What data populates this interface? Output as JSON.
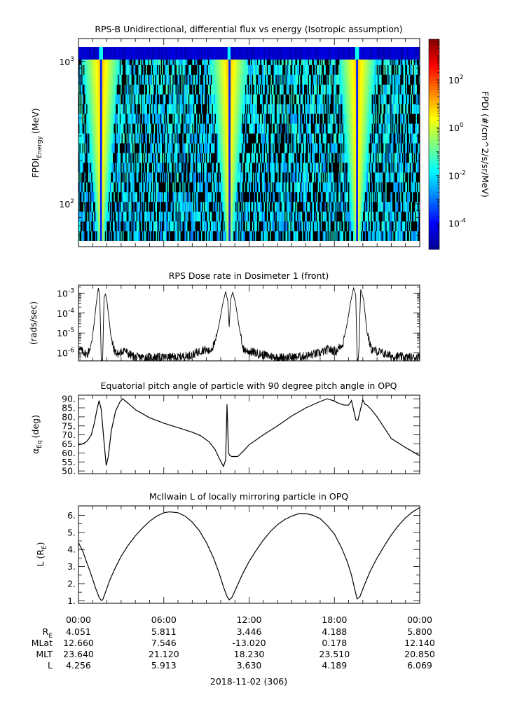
{
  "chart_data": [
    {
      "type": "heatmap",
      "title": "RPS-B  Unidirectional, differential flux vs energy (Isotropic assumption)",
      "ylabel_main": "FPDI",
      "ylabel_sub": "Energy",
      "ylabel_unit": "(MeV)",
      "yscale": "log",
      "ylim": [
        50,
        1450
      ],
      "y_ticks": [
        {
          "value": 100,
          "base": "10",
          "exp": "2"
        },
        {
          "value": 1000,
          "base": "10",
          "exp": "3"
        }
      ],
      "xlim": [
        0,
        24
      ],
      "colorbar": {
        "label": "FPDI (#/cm^2/s/sr/MeV)",
        "scale": "log",
        "range": [
          8e-06,
          5000
        ],
        "ticks": [
          {
            "value": 0.0001,
            "base": "10",
            "exp": "-4"
          },
          {
            "value": 0.01,
            "base": "10",
            "exp": "-2"
          },
          {
            "value": 1,
            "base": "10",
            "exp": "0"
          },
          {
            "value": 100,
            "base": "10",
            "exp": "2"
          }
        ],
        "colors": [
          "#00008f",
          "#0000ff",
          "#0080ff",
          "#00ffff",
          "#80ff80",
          "#ffff00",
          "#ff8000",
          "#ff0000",
          "#800000"
        ]
      },
      "perigee_hours": [
        1.6,
        10.6,
        19.6
      ],
      "background_level": 0.004,
      "top_channel_level": 3e-05,
      "energy_channels": 20
    },
    {
      "type": "line",
      "title": "RPS  Dose rate in Dosimeter 1 (front)",
      "ylabel": "(rads/sec)",
      "yscale": "log",
      "ylim": [
        4e-07,
        0.0025
      ],
      "xlim": [
        0,
        24
      ],
      "y_ticks": [
        {
          "value": 1e-06,
          "base": "10",
          "exp": "-6"
        },
        {
          "value": 1e-05,
          "base": "10",
          "exp": "-5"
        },
        {
          "value": 0.0001,
          "base": "10",
          "exp": "-4"
        },
        {
          "value": 0.001,
          "base": "10",
          "exp": "-3"
        }
      ],
      "series": [
        {
          "x": [
            0,
            0.3,
            0.6,
            0.9,
            1.1,
            1.25,
            1.4,
            1.5,
            1.6,
            1.7,
            1.8,
            1.9,
            2.0,
            2.15,
            2.3,
            2.5,
            2.7,
            2.9,
            3.2,
            3.5,
            4,
            5,
            6,
            7,
            8,
            8.8,
            9.2,
            9.6,
            9.9,
            10.15,
            10.35,
            10.5,
            10.6,
            10.7,
            10.85,
            11.05,
            11.3,
            11.6,
            12,
            13,
            14,
            15,
            16,
            17,
            17.6,
            18.1,
            18.6,
            18.9,
            19.15,
            19.35,
            19.5,
            19.6,
            19.7,
            19.85,
            20.05,
            20.3,
            20.6,
            21,
            22,
            23,
            24
          ],
          "y": [
            1.5e-06,
            1.2e-06,
            8e-07,
            2.5e-06,
            3e-05,
            0.0003,
            0.0018,
            0.0007,
            5e-07,
            5e-07,
            0.0006,
            0.0009,
            0.0004,
            5e-05,
            5e-06,
            1.5e-06,
            9e-07,
            9e-07,
            1.5e-06,
            9e-07,
            6e-07,
            6e-07,
            6e-07,
            6e-07,
            8e-07,
            1.5e-06,
            1.2e-06,
            3e-06,
            3e-05,
            0.0003,
            0.0012,
            0.0004,
            2e-05,
            0.0005,
            0.0011,
            0.0003,
            2e-05,
            1.5e-06,
            1.2e-06,
            8e-07,
            6e-07,
            6e-07,
            7e-07,
            1e-06,
            1.5e-06,
            1.2e-06,
            3e-06,
            3e-05,
            0.0004,
            0.0018,
            0.0008,
            5e-07,
            6e-07,
            0.0015,
            0.0005,
            1e-05,
            1.5e-06,
            1.2e-06,
            7e-07,
            6e-07,
            6e-07
          ]
        }
      ]
    },
    {
      "type": "line",
      "title": "Equatorial pitch angle of particle with 90 degree pitch angle in OPQ",
      "ylabel_main": "α",
      "ylabel_sub": "Eq",
      "ylabel_unit": "(deg)",
      "ylim": [
        48.5,
        92
      ],
      "xlim": [
        0,
        24
      ],
      "y_ticks": [
        50,
        55,
        60,
        65,
        70,
        75,
        80,
        85,
        90
      ],
      "y_tick_labels": [
        "50.",
        "55.",
        "60.",
        "65.",
        "70.",
        "75.",
        "80.",
        "85.",
        "90."
      ],
      "series": [
        {
          "x": [
            0,
            0.3,
            0.6,
            0.9,
            1.1,
            1.3,
            1.45,
            1.6,
            1.8,
            1.95,
            2.1,
            2.3,
            2.6,
            2.9,
            3.1,
            3.5,
            4,
            5,
            6,
            7,
            8,
            8.6,
            9.2,
            9.6,
            9.9,
            10.1,
            10.2,
            10.35,
            10.45,
            10.55,
            10.65,
            10.8,
            11.2,
            11.6,
            12,
            13,
            14,
            15,
            16,
            17,
            17.5,
            17.9,
            18.3,
            18.7,
            19.0,
            19.2,
            19.35,
            19.5,
            19.65,
            19.8,
            20.0,
            20.15,
            20.3,
            20.6,
            21,
            21.5,
            22,
            23,
            24
          ],
          "y": [
            64.5,
            65,
            66.5,
            70,
            76,
            84,
            89,
            84,
            66,
            53,
            58,
            72,
            83,
            88,
            90,
            87.5,
            84,
            79.5,
            76.5,
            74,
            71.5,
            69.5,
            66,
            62,
            57,
            54,
            52.5,
            56,
            87,
            60,
            58.5,
            58,
            58,
            61,
            64.5,
            70,
            75,
            80.5,
            85,
            88.5,
            90,
            89,
            87.5,
            86.5,
            86.5,
            89,
            84,
            78.5,
            78,
            83,
            89.5,
            87,
            86.5,
            84,
            80,
            74,
            68,
            63,
            58.5
          ]
        }
      ]
    },
    {
      "type": "line",
      "title": "McIlwain L of locally mirroring particle in OPQ",
      "ylabel_main": "L (R",
      "ylabel_sub": "E",
      "ylabel_unit": ")",
      "ylim": [
        0.85,
        6.55
      ],
      "xlim": [
        0,
        24
      ],
      "y_ticks": [
        1,
        2,
        3,
        4,
        5,
        6
      ],
      "y_tick_labels": [
        "1.",
        "2.",
        "3.",
        "4.",
        "5.",
        "6."
      ],
      "series": [
        {
          "x": [
            0,
            0.3,
            0.6,
            0.9,
            1.2,
            1.45,
            1.6,
            1.7,
            1.9,
            2.2,
            2.6,
            3.0,
            3.5,
            4,
            4.5,
            5,
            5.5,
            6,
            6.4,
            7,
            7.5,
            8,
            8.5,
            9,
            9.5,
            9.9,
            10.2,
            10.45,
            10.6,
            10.8,
            11.1,
            11.5,
            12,
            12.5,
            13,
            13.5,
            14,
            14.5,
            15,
            15.5,
            16,
            16.5,
            17,
            17.5,
            18,
            18.5,
            18.9,
            19.2,
            19.45,
            19.6,
            19.8,
            20.1,
            20.5,
            21,
            21.5,
            22,
            22.5,
            23,
            23.5,
            24
          ],
          "y": [
            4.4,
            3.9,
            3.2,
            2.5,
            1.75,
            1.2,
            1.02,
            1.05,
            1.5,
            2.2,
            2.95,
            3.6,
            4.25,
            4.8,
            5.25,
            5.65,
            5.95,
            6.15,
            6.2,
            6.15,
            5.95,
            5.6,
            5.1,
            4.4,
            3.5,
            2.6,
            1.8,
            1.25,
            1.05,
            1.2,
            1.75,
            2.5,
            3.3,
            3.95,
            4.55,
            5.05,
            5.45,
            5.75,
            5.95,
            6.1,
            6.1,
            6.0,
            5.8,
            5.4,
            4.9,
            4.1,
            3.3,
            2.5,
            1.6,
            1.1,
            1.25,
            1.9,
            2.7,
            3.5,
            4.2,
            4.85,
            5.4,
            5.85,
            6.2,
            6.45
          ]
        }
      ]
    }
  ],
  "x_axis": {
    "ticks": [
      0,
      6,
      12,
      18,
      24
    ],
    "tick_labels": [
      "00:00",
      "06:00",
      "12:00",
      "18:00",
      "00:00"
    ],
    "minor_step": 1,
    "date_label": "2018-11-02 (306)"
  },
  "ephemeris": {
    "rows": [
      {
        "label": "R",
        "label_sub": "E",
        "values": [
          "4.051",
          "5.811",
          "3.446",
          "4.188",
          "5.800"
        ]
      },
      {
        "label": "MLat",
        "values": [
          "12.660",
          "7.546",
          "-13.020",
          "0.178",
          "12.140"
        ]
      },
      {
        "label": "MLT",
        "values": [
          "23.640",
          "21.120",
          "18.230",
          "23.510",
          "20.850"
        ]
      },
      {
        "label": "L",
        "values": [
          "4.256",
          "5.913",
          "3.630",
          "4.189",
          "6.069"
        ]
      }
    ]
  }
}
